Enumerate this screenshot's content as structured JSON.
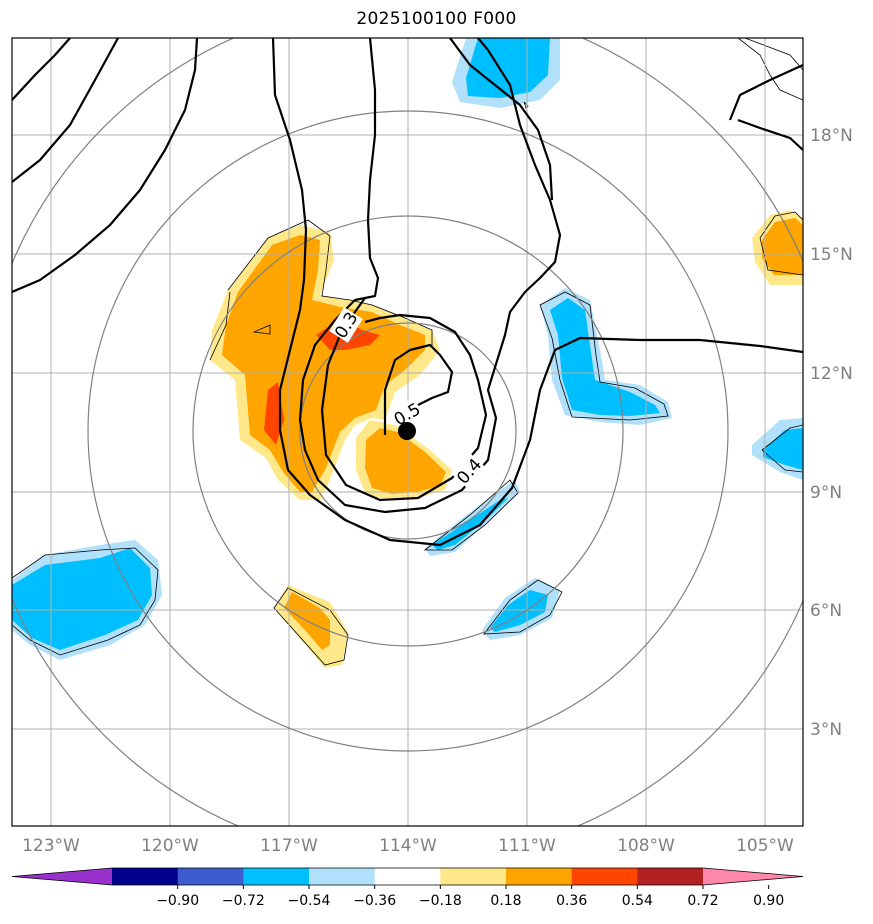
{
  "title": "2025100100 F000",
  "lat_labels": [
    "18°N",
    "15°N",
    "12°N",
    "9°N",
    "6°N",
    "3°N"
  ],
  "lon_labels": [
    "123°W",
    "120°W",
    "117°W",
    "114°W",
    "111°W",
    "108°W",
    "105°W"
  ],
  "contour_labels": [
    "0.3",
    "0.4",
    "0.5"
  ],
  "colorbar": {
    "ticks": [
      "−0.90",
      "−0.72",
      "−0.54",
      "−0.36",
      "−0.18",
      "0.18",
      "0.36",
      "0.54",
      "0.72",
      "0.90"
    ],
    "colors": [
      "#9932cc",
      "#00008b",
      "#3c5ccf",
      "#00bfff",
      "#b0e0fa",
      "#ffffff",
      "#ffe88a",
      "#ffa500",
      "#ff4500",
      "#b22222",
      "#ff88aa"
    ]
  },
  "map": {
    "extent": {
      "lon_min": -124,
      "lon_max": -104,
      "lat_min": 0.0,
      "lat_max": 20.0
    },
    "center": {
      "lon": -114.0,
      "lat": 10.5
    },
    "grid_step_deg": 3,
    "ring_color": "#808080",
    "contour_color": "#000000"
  }
}
